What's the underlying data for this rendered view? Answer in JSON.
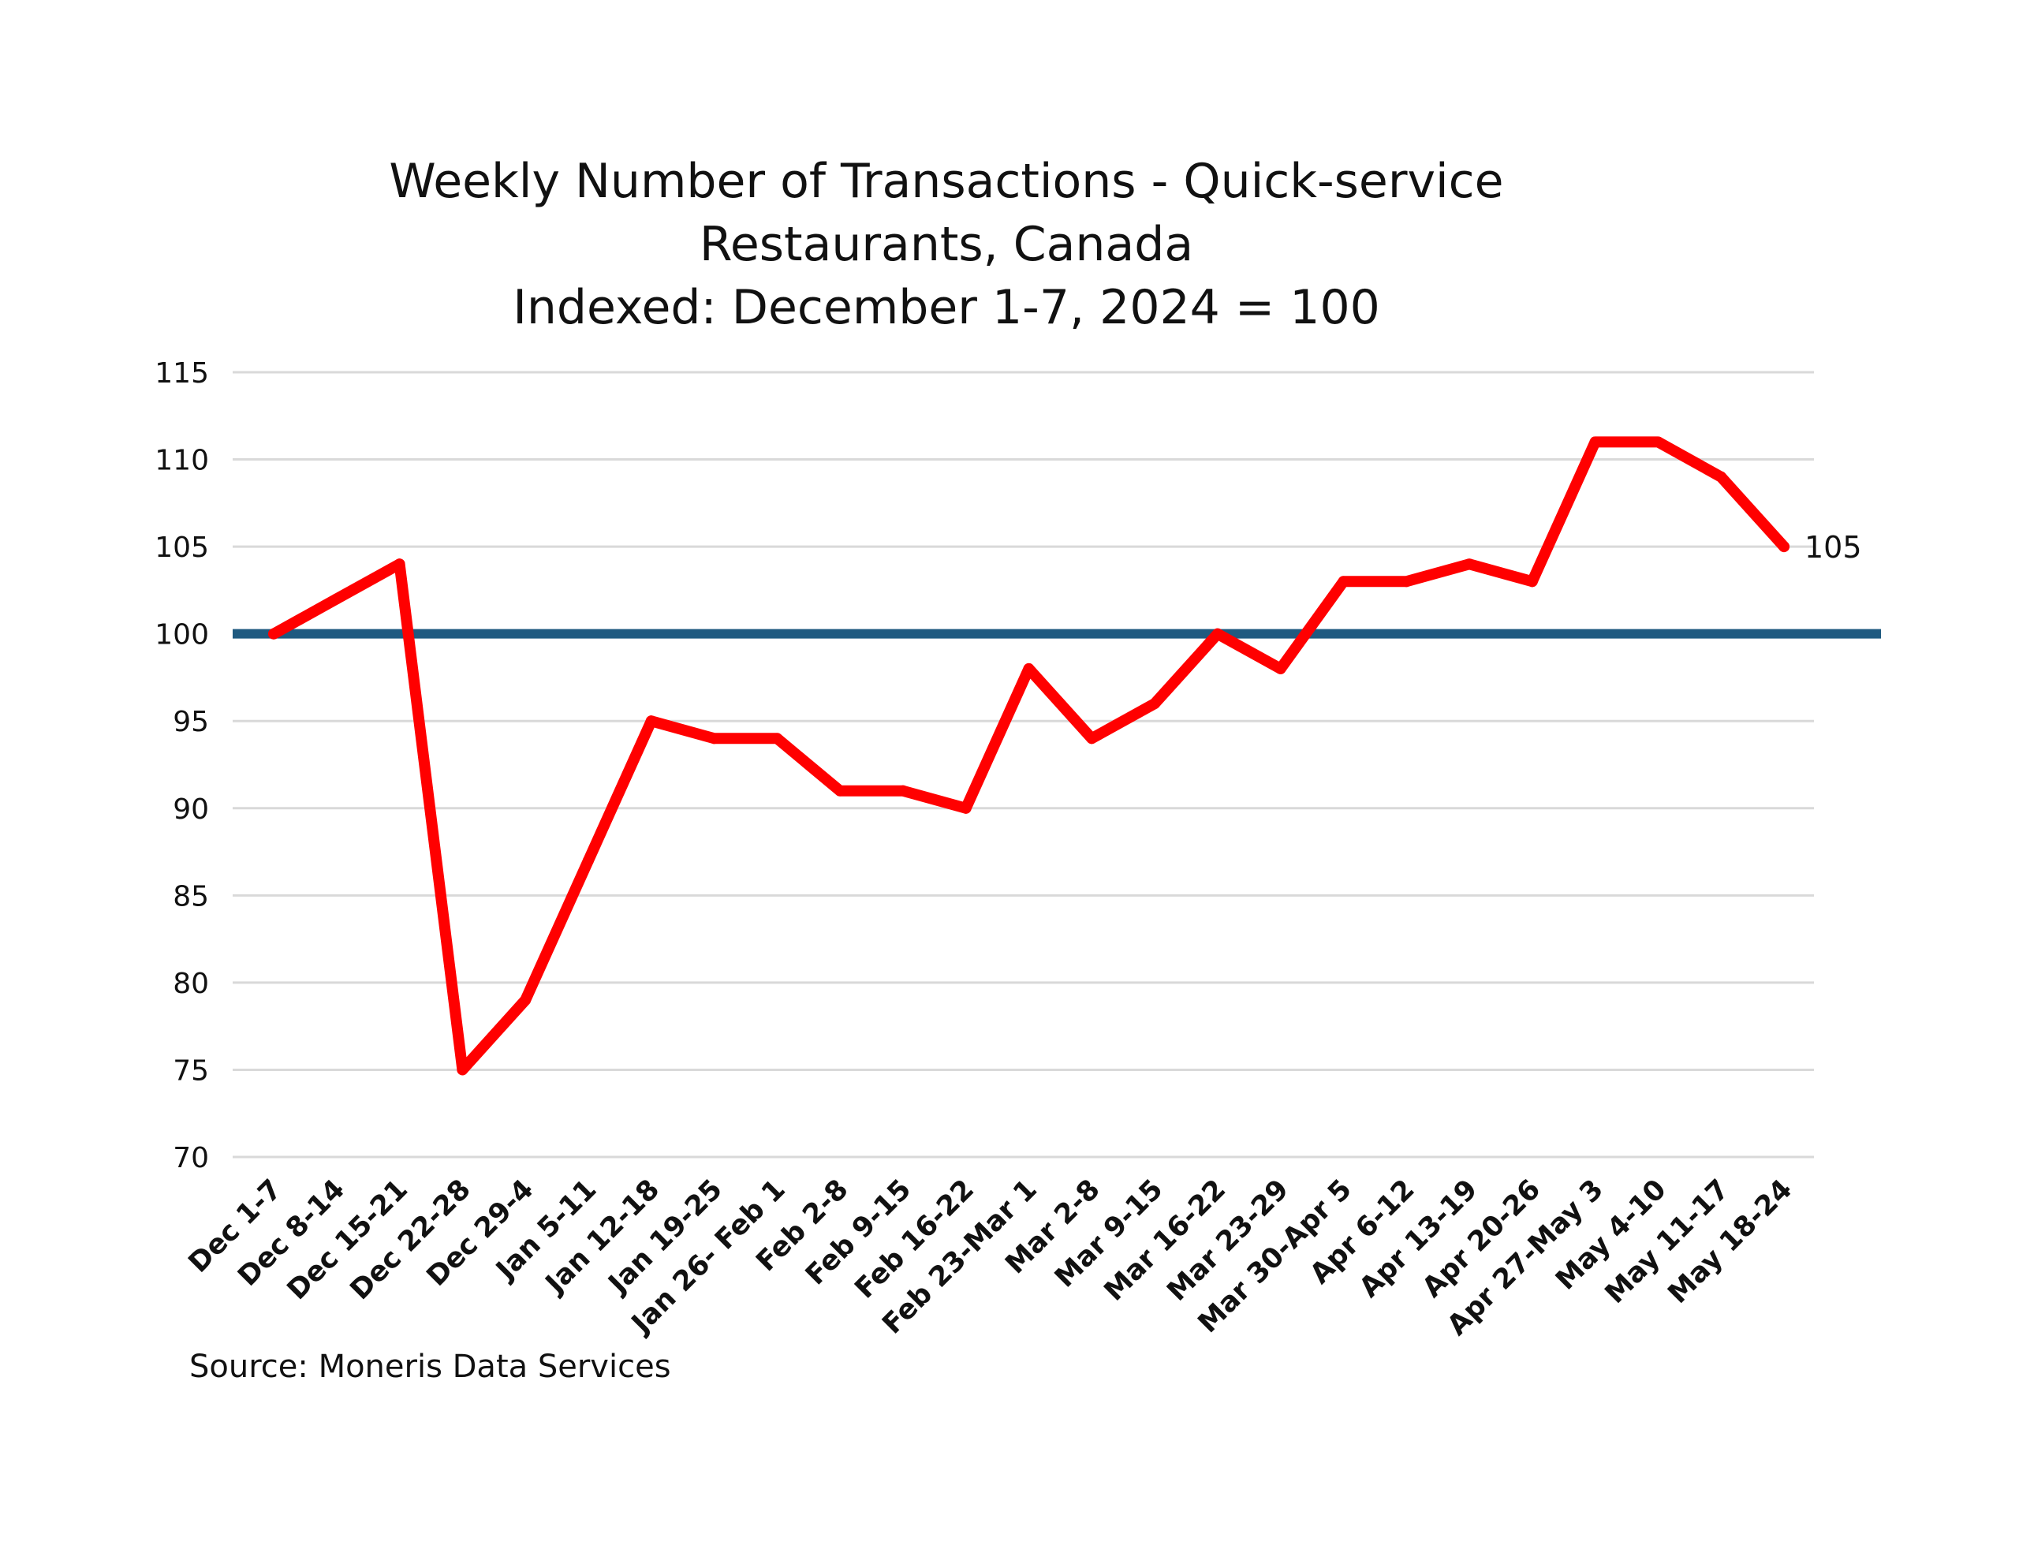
{
  "chart_data": {
    "type": "line",
    "title": [
      "Weekly Number of Transactions - Quick-service",
      "Restaurants, Canada",
      "Indexed: December 1-7, 2024 = 100"
    ],
    "categories": [
      "Dec 1-7",
      "Dec 8-14",
      "Dec 15-21",
      "Dec 22-28",
      "Dec 29-4",
      "Jan 5-11",
      "Jan 12-18",
      "Jan 19-25",
      "Jan 26- Feb 1",
      "Feb 2-8",
      "Feb 9-15",
      "Feb 16-22",
      "Feb 23-Mar 1",
      "Mar 2-8",
      "Mar 9-15",
      "Mar 16-22",
      "Mar 23-29",
      "Mar 30-Apr 5",
      "Apr 6-12",
      "Apr 13-19",
      "Apr 20-26",
      "Apr 27-May 3",
      "May 4-10",
      "May 11-17",
      "May 18-24"
    ],
    "series": [
      {
        "color": "#ff0000",
        "values": [
          100,
          102,
          104,
          75,
          79,
          87,
          95,
          94,
          94,
          91,
          91,
          90,
          98,
          94,
          96,
          100,
          98,
          103,
          103,
          104,
          103,
          111,
          111,
          109,
          105
        ]
      }
    ],
    "reference_line": {
      "value": 100,
      "color": "#1f5a80"
    },
    "end_label": "105",
    "ylim": [
      70,
      115
    ],
    "yticks": [
      "70",
      "75",
      "80",
      "85",
      "90",
      "95",
      "100",
      "105",
      "110",
      "115"
    ],
    "grid": true,
    "legend": "none"
  },
  "source": "Source: Moneris Data Services"
}
